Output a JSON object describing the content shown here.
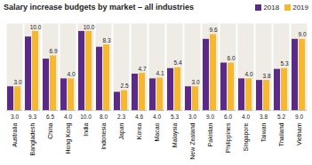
{
  "chart_data": {
    "type": "bar",
    "title": "Salary increase budgets by market – all industries",
    "categories": [
      "Australia",
      "Bangladesh",
      "China",
      "Hong Kong",
      "India",
      "Indonesia",
      "Japan",
      "Korea",
      "Macao",
      "Malaysia",
      "New Zealand",
      "Pakistan",
      "Philippines",
      "Singapore",
      "Taiwan",
      "Thailand",
      "Vietnam"
    ],
    "series": [
      {
        "name": "2018",
        "color": "#5b2a86",
        "values": [
          3.0,
          9.3,
          6.5,
          4.0,
          10.0,
          8.0,
          2.3,
          4.6,
          4.0,
          5.3,
          3.0,
          9.0,
          6.0,
          4.0,
          3.8,
          5.2,
          9.0
        ],
        "value_labels": [
          "3.0",
          "9.3",
          "6.5",
          "4.0",
          "10.0",
          "8.0",
          "2.3",
          "4.6",
          "4.0",
          "5.3",
          "3.0",
          "9.0",
          "6.0",
          "4.0",
          "3.8",
          "5.2",
          "9.0"
        ]
      },
      {
        "name": "2019",
        "color": "#f5b82e",
        "values": [
          3.0,
          10.0,
          6.9,
          4.0,
          10.0,
          8.3,
          2.5,
          4.7,
          4.1,
          5.4,
          3.0,
          9.6,
          6.0,
          4.0,
          3.8,
          5.3,
          9.0
        ],
        "value_labels": [
          "3.0",
          "10.0",
          "6.9",
          "4.0",
          "10.0",
          "8.3",
          "2.5",
          "4.7",
          "4.1",
          "5.4",
          "3.0",
          "9.6",
          "6.0",
          "4.0",
          "3.8",
          "5.3",
          "9.0"
        ]
      }
    ],
    "ylim": [
      0,
      11
    ],
    "data_labels": true,
    "tick_labels": "x",
    "grid": false,
    "legend": "top-right"
  }
}
